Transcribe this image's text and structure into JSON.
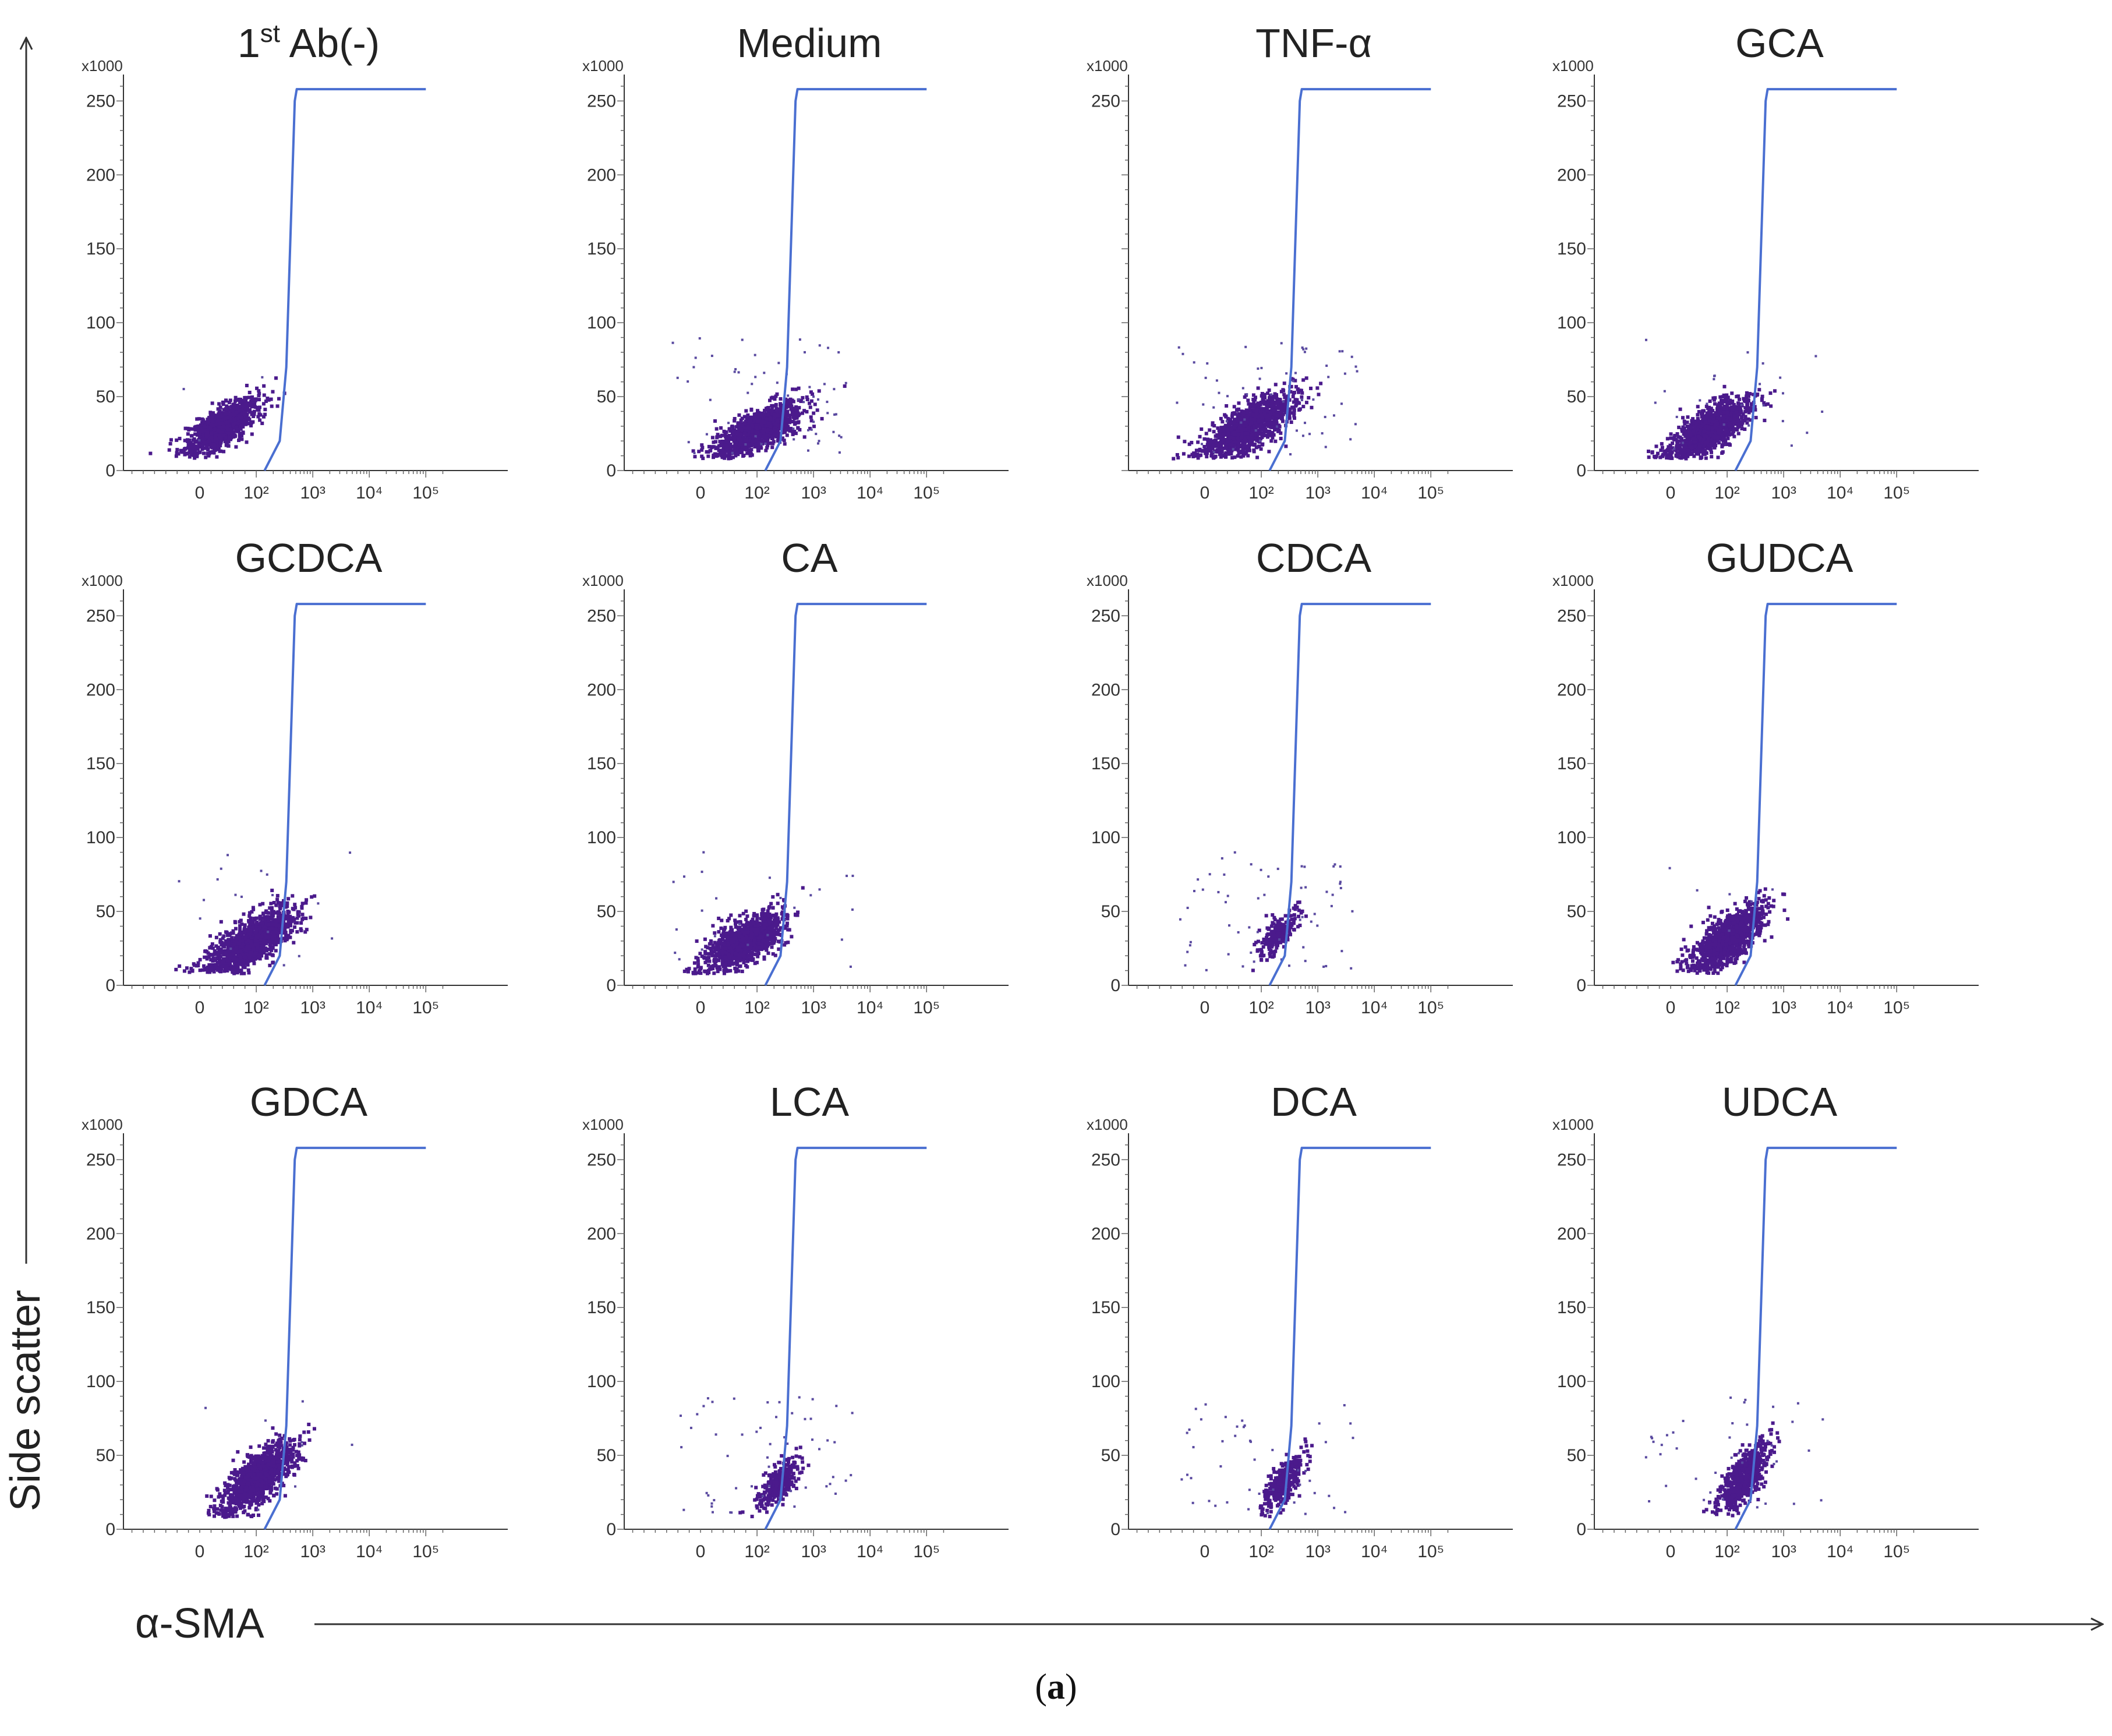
{
  "figure": {
    "x_axis_label": "α-SMA",
    "y_axis_label": "Side scatter",
    "caption_open": "(",
    "caption_label": "a",
    "caption_close": ")"
  },
  "colors": {
    "gate": "#4a6fd1",
    "dots": "#4b1a8c",
    "sparse": "#5a4aa0",
    "axis": "#333333"
  },
  "chart_data": [
    {
      "type": "scatter",
      "title": "1st Ab(-)",
      "title_base": "1",
      "title_sup": "st",
      "title_rest": " Ab(-)",
      "y_multiplier": "x1000",
      "ylim": [
        0,
        260
      ],
      "yticks": [
        "0",
        "50",
        "100",
        "150",
        "200",
        "250"
      ],
      "xticks": [
        "0",
        "10²",
        "10³",
        "10⁴",
        "10⁵"
      ],
      "xscale": "biexponential",
      "gate": {
        "x": [
          140,
          260,
          340,
          480,
          520,
          100000
        ],
        "y": [
          0,
          20,
          70,
          250,
          258,
          258
        ]
      },
      "populations": [
        {
          "x_center": 40,
          "x_spread_decades": 0.9,
          "y_center": 30,
          "y_spread": 12,
          "count": 1100
        }
      ],
      "outlier_count": 3
    },
    {
      "type": "scatter",
      "title": "Medium",
      "y_multiplier": "x1000",
      "ylim": [
        0,
        260
      ],
      "yticks": [
        "0",
        "50",
        "100",
        "150",
        "200",
        "250"
      ],
      "xticks": [
        "0",
        "10²",
        "10³",
        "10⁴",
        "10⁵"
      ],
      "xscale": "biexponential",
      "gate": {
        "x": [
          140,
          260,
          340,
          480,
          520,
          100000
        ],
        "y": [
          0,
          20,
          70,
          250,
          258,
          258
        ]
      },
      "populations": [
        {
          "x_center": 110,
          "x_spread_decades": 1.1,
          "y_center": 28,
          "y_spread": 12,
          "count": 1100
        }
      ],
      "outlier_count": 60
    },
    {
      "type": "scatter",
      "title": "TNF-α",
      "y_multiplier": "x1000",
      "ylim": [
        0,
        260
      ],
      "yticks": [
        "250"
      ],
      "xticks": [
        "0",
        "10²",
        "10³",
        "10⁴",
        "10⁵"
      ],
      "xscale": "biexponential",
      "gate": {
        "x": [
          140,
          260,
          340,
          480,
          520,
          100000
        ],
        "y": [
          0,
          20,
          70,
          250,
          258,
          258
        ]
      },
      "populations": [
        {
          "x_center": 80,
          "x_spread_decades": 1.1,
          "y_center": 30,
          "y_spread": 14,
          "count": 1200
        }
      ],
      "outlier_count": 60
    },
    {
      "type": "scatter",
      "title": "GCA",
      "y_multiplier": "x1000",
      "ylim": [
        0,
        260
      ],
      "yticks": [
        "0",
        "50",
        "100",
        "150",
        "200",
        "250"
      ],
      "xticks": [
        "0",
        "10²",
        "10³",
        "10⁴",
        "10⁵"
      ],
      "xscale": "biexponential",
      "gate": {
        "x": [
          140,
          260,
          340,
          480,
          520,
          100000
        ],
        "y": [
          0,
          20,
          70,
          250,
          258,
          258
        ]
      },
      "populations": [
        {
          "x_center": 70,
          "x_spread_decades": 1.0,
          "y_center": 28,
          "y_spread": 13,
          "count": 1200
        }
      ],
      "outlier_count": 25
    },
    {
      "type": "scatter",
      "title": "GCDCA",
      "y_multiplier": "x1000",
      "ylim": [
        0,
        260
      ],
      "yticks": [
        "0",
        "50",
        "100",
        "150",
        "200",
        "250"
      ],
      "xticks": [
        "0",
        "10²",
        "10³",
        "10⁴",
        "10⁵"
      ],
      "xscale": "biexponential",
      "gate": {
        "x": [
          140,
          260,
          340,
          480,
          520,
          100000
        ],
        "y": [
          0,
          20,
          70,
          250,
          258,
          258
        ]
      },
      "populations": [
        {
          "x_center": 90,
          "x_spread_decades": 1.1,
          "y_center": 30,
          "y_spread": 14,
          "count": 1250
        }
      ],
      "outlier_count": 18
    },
    {
      "type": "scatter",
      "title": "CA",
      "y_multiplier": "x1000",
      "ylim": [
        0,
        260
      ],
      "yticks": [
        "0",
        "50",
        "100",
        "150",
        "200",
        "250"
      ],
      "xticks": [
        "0",
        "10²",
        "10³",
        "10⁴",
        "10⁵"
      ],
      "xscale": "biexponential",
      "gate": {
        "x": [
          140,
          260,
          340,
          480,
          520,
          100000
        ],
        "y": [
          0,
          20,
          70,
          250,
          258,
          258
        ]
      },
      "populations": [
        {
          "x_center": 80,
          "x_spread_decades": 1.0,
          "y_center": 30,
          "y_spread": 13,
          "count": 1150
        }
      ],
      "outlier_count": 25
    },
    {
      "type": "scatter",
      "title": "CDCA",
      "y_multiplier": "x1000",
      "ylim": [
        0,
        260
      ],
      "yticks": [
        "0",
        "50",
        "100",
        "150",
        "200",
        "250"
      ],
      "xticks": [
        "0",
        "10²",
        "10³",
        "10⁴",
        "10⁵"
      ],
      "xscale": "biexponential",
      "gate": {
        "x": [
          140,
          260,
          340,
          480,
          520,
          100000
        ],
        "y": [
          0,
          20,
          70,
          250,
          258,
          258
        ]
      },
      "populations": [
        {
          "x_center": 200,
          "x_spread_decades": 0.5,
          "y_center": 35,
          "y_spread": 10,
          "count": 220
        }
      ],
      "outlier_count": 60
    },
    {
      "type": "scatter",
      "title": "GUDCA",
      "y_multiplier": "x1000",
      "ylim": [
        0,
        260
      ],
      "yticks": [
        "0",
        "50",
        "100",
        "150",
        "200",
        "250"
      ],
      "xticks": [
        "0",
        "10²",
        "10³",
        "10⁴",
        "10⁵"
      ],
      "xscale": "biexponential",
      "gate": {
        "x": [
          140,
          260,
          340,
          480,
          520,
          100000
        ],
        "y": [
          0,
          20,
          70,
          250,
          258,
          258
        ]
      },
      "populations": [
        {
          "x_center": 110,
          "x_spread_decades": 0.9,
          "y_center": 32,
          "y_spread": 14,
          "count": 1100
        }
      ],
      "outlier_count": 6
    },
    {
      "type": "scatter",
      "title": "GDCA",
      "y_multiplier": "x1000",
      "ylim": [
        0,
        260
      ],
      "yticks": [
        "0",
        "50",
        "100",
        "150",
        "200",
        "250"
      ],
      "xticks": [
        "0",
        "10²",
        "10³",
        "10⁴",
        "10⁵"
      ],
      "xscale": "biexponential",
      "gate": {
        "x": [
          140,
          260,
          340,
          480,
          520,
          100000
        ],
        "y": [
          0,
          20,
          70,
          250,
          258,
          258
        ]
      },
      "populations": [
        {
          "x_center": 110,
          "x_spread_decades": 0.9,
          "y_center": 35,
          "y_spread": 15,
          "count": 1100
        }
      ],
      "outlier_count": 8
    },
    {
      "type": "scatter",
      "title": "LCA",
      "y_multiplier": "x1000",
      "ylim": [
        0,
        260
      ],
      "yticks": [
        "0",
        "50",
        "100",
        "150",
        "200",
        "250"
      ],
      "xticks": [
        "0",
        "10²",
        "10³",
        "10⁴",
        "10⁵"
      ],
      "xscale": "biexponential",
      "gate": {
        "x": [
          140,
          260,
          340,
          480,
          520,
          100000
        ],
        "y": [
          0,
          20,
          70,
          250,
          258,
          258
        ]
      },
      "populations": [
        {
          "x_center": 250,
          "x_spread_decades": 0.5,
          "y_center": 32,
          "y_spread": 10,
          "count": 320
        }
      ],
      "outlier_count": 55
    },
    {
      "type": "scatter",
      "title": "DCA",
      "y_multiplier": "x1000",
      "ylim": [
        0,
        260
      ],
      "yticks": [
        "0",
        "50",
        "100",
        "150",
        "200",
        "250"
      ],
      "xticks": [
        "0",
        "10²",
        "10³",
        "10⁴",
        "10⁵"
      ],
      "xscale": "biexponential",
      "gate": {
        "x": [
          140,
          260,
          340,
          480,
          520,
          100000
        ],
        "y": [
          0,
          20,
          70,
          250,
          258,
          258
        ]
      },
      "populations": [
        {
          "x_center": 250,
          "x_spread_decades": 0.5,
          "y_center": 32,
          "y_spread": 12,
          "count": 330
        }
      ],
      "outlier_count": 45
    },
    {
      "type": "scatter",
      "title": "UDCA",
      "y_multiplier": "x1000",
      "ylim": [
        0,
        260
      ],
      "yticks": [
        "0",
        "50",
        "100",
        "150",
        "200",
        "250"
      ],
      "xticks": [
        "0",
        "10²",
        "10³",
        "10⁴",
        "10⁵"
      ],
      "xscale": "biexponential",
      "gate": {
        "x": [
          140,
          260,
          340,
          480,
          520,
          100000
        ],
        "y": [
          0,
          20,
          70,
          250,
          258,
          258
        ]
      },
      "populations": [
        {
          "x_center": 200,
          "x_spread_decades": 0.6,
          "y_center": 35,
          "y_spread": 14,
          "count": 700
        }
      ],
      "outlier_count": 40
    }
  ]
}
